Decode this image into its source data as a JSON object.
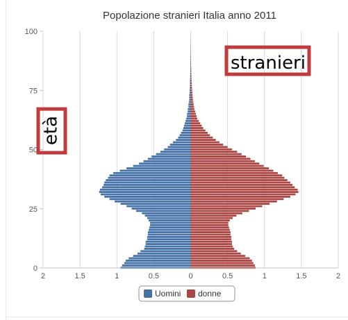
{
  "chart_data": {
    "type": "bar",
    "orientation": "horizontal",
    "title": "Popolazione stranieri Italia anno 2011",
    "x_ticks": [
      "2",
      "1.5",
      "1",
      "0.5",
      "0",
      "0.5",
      "1",
      "1.5",
      "2"
    ],
    "y_ticks": [
      "0",
      "25",
      "50",
      "75",
      "100"
    ],
    "xlim": [
      -2,
      2
    ],
    "ylim": [
      0,
      100
    ],
    "grid": true,
    "legend_position": "bottom-center",
    "ages": [
      0,
      1,
      2,
      3,
      4,
      5,
      6,
      7,
      8,
      9,
      10,
      11,
      12,
      13,
      14,
      15,
      16,
      17,
      18,
      19,
      20,
      21,
      22,
      23,
      24,
      25,
      26,
      27,
      28,
      29,
      30,
      31,
      32,
      33,
      34,
      35,
      36,
      37,
      38,
      39,
      40,
      41,
      42,
      43,
      44,
      45,
      46,
      47,
      48,
      49,
      50,
      51,
      52,
      53,
      54,
      55,
      56,
      57,
      58,
      59,
      60,
      61,
      62,
      63,
      64,
      65,
      66,
      67,
      68,
      69,
      70,
      71,
      72,
      73,
      74,
      75,
      76,
      77,
      78,
      79,
      80,
      81,
      82,
      83,
      84,
      85,
      86,
      87,
      88,
      89,
      90,
      91,
      92,
      93,
      94,
      95,
      96,
      97,
      98,
      99,
      100
    ],
    "series": [
      {
        "name": "Uomini",
        "color": "#4572a7",
        "values": [
          0.95,
          0.93,
          0.9,
          0.88,
          0.84,
          0.78,
          0.72,
          0.68,
          0.63,
          0.62,
          0.61,
          0.61,
          0.59,
          0.59,
          0.58,
          0.58,
          0.57,
          0.56,
          0.55,
          0.55,
          0.57,
          0.59,
          0.62,
          0.66,
          0.74,
          0.8,
          0.87,
          0.95,
          1.03,
          1.1,
          1.17,
          1.22,
          1.24,
          1.23,
          1.2,
          1.18,
          1.17,
          1.15,
          1.12,
          1.1,
          1.05,
          0.96,
          0.87,
          0.78,
          0.7,
          0.64,
          0.58,
          0.53,
          0.47,
          0.41,
          0.36,
          0.31,
          0.28,
          0.24,
          0.2,
          0.17,
          0.15,
          0.13,
          0.11,
          0.1,
          0.09,
          0.08,
          0.07,
          0.06,
          0.05,
          0.05,
          0.04,
          0.04,
          0.03,
          0.03,
          0.025,
          0.02,
          0.02,
          0.02,
          0.015,
          0.015,
          0.012,
          0.01,
          0.01,
          0.01,
          0.008,
          0.007,
          0.006,
          0.005,
          0.005,
          0.004,
          0.004,
          0.003,
          0.003,
          0.002,
          0.002,
          0.002,
          0.001,
          0.001,
          0.001,
          0.001,
          0.001,
          0.0,
          0.0,
          0.0,
          0.0
        ]
      },
      {
        "name": "donne",
        "color": "#aa4643",
        "values": [
          0.88,
          0.87,
          0.85,
          0.83,
          0.8,
          0.74,
          0.68,
          0.63,
          0.59,
          0.57,
          0.56,
          0.56,
          0.55,
          0.55,
          0.54,
          0.54,
          0.53,
          0.52,
          0.51,
          0.51,
          0.53,
          0.57,
          0.62,
          0.7,
          0.79,
          0.88,
          0.97,
          1.07,
          1.17,
          1.26,
          1.35,
          1.42,
          1.46,
          1.45,
          1.41,
          1.38,
          1.35,
          1.31,
          1.27,
          1.24,
          1.18,
          1.12,
          1.06,
          0.99,
          0.93,
          0.87,
          0.81,
          0.75,
          0.69,
          0.63,
          0.56,
          0.5,
          0.44,
          0.39,
          0.34,
          0.3,
          0.26,
          0.23,
          0.2,
          0.17,
          0.15,
          0.13,
          0.11,
          0.09,
          0.08,
          0.07,
          0.06,
          0.05,
          0.045,
          0.04,
          0.035,
          0.03,
          0.028,
          0.025,
          0.022,
          0.02,
          0.018,
          0.016,
          0.014,
          0.012,
          0.011,
          0.01,
          0.009,
          0.008,
          0.007,
          0.006,
          0.005,
          0.005,
          0.004,
          0.004,
          0.003,
          0.003,
          0.002,
          0.002,
          0.002,
          0.001,
          0.001,
          0.001,
          0.0,
          0.0,
          0.0
        ]
      }
    ]
  },
  "annotations": {
    "box_color": "#c03b3b",
    "top_right": "stranieri",
    "left": "età"
  }
}
